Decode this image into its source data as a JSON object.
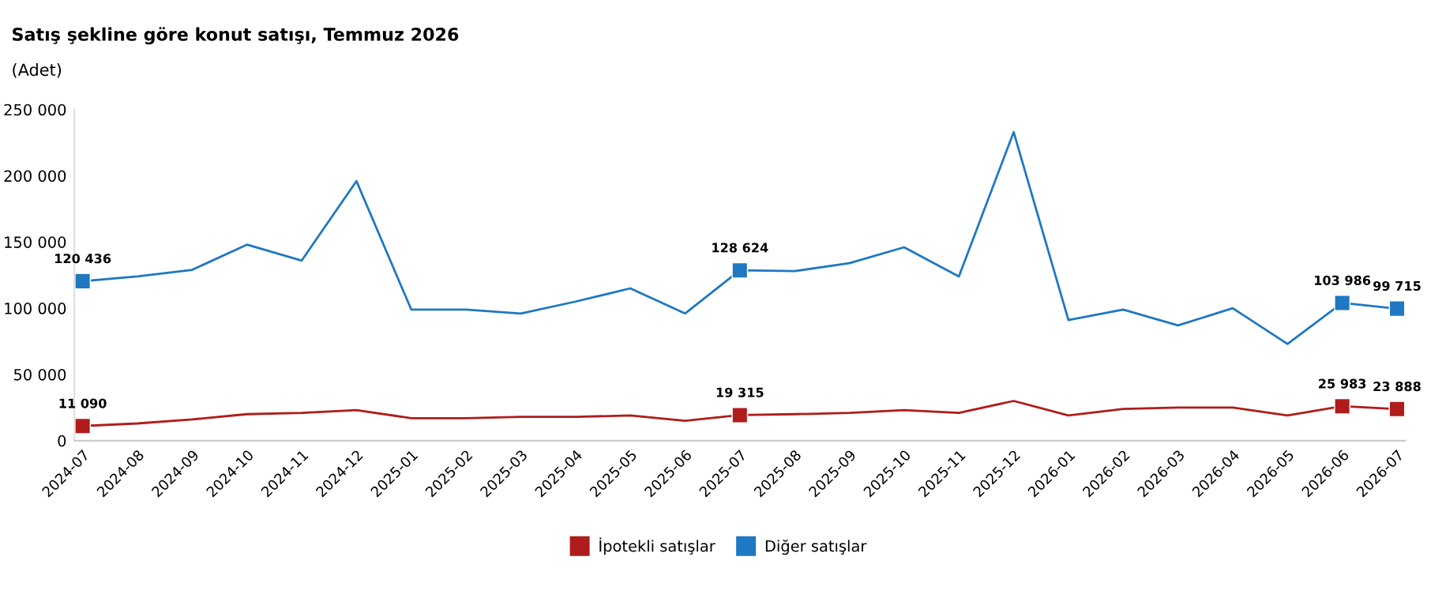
{
  "chart_data": {
    "type": "line",
    "title": "Satış şekline göre konut satışı, Temmuz 2026",
    "subtitle": "(Adet)",
    "categories": [
      "2024-07",
      "2024-08",
      "2024-09",
      "2024-10",
      "2024-11",
      "2024-12",
      "2025-01",
      "2025-02",
      "2025-03",
      "2025-04",
      "2025-05",
      "2025-06",
      "2025-07",
      "2025-08",
      "2025-09",
      "2025-10",
      "2025-11",
      "2025-12",
      "2026-01",
      "2026-02",
      "2026-03",
      "2026-04",
      "2026-05",
      "2026-06",
      "2026-07"
    ],
    "series": [
      {
        "name": "İpotekli satışlar",
        "color": "#b01c1c",
        "values": [
          11090,
          13000,
          16000,
          20000,
          21000,
          23000,
          17000,
          17000,
          18000,
          18000,
          19000,
          15000,
          19315,
          20000,
          21000,
          23000,
          21000,
          30000,
          19000,
          24000,
          25000,
          25000,
          19000,
          25983,
          23888
        ],
        "value_labels": [
          "11 090",
          null,
          null,
          null,
          null,
          null,
          null,
          null,
          null,
          null,
          null,
          null,
          "19 315",
          null,
          null,
          null,
          null,
          null,
          null,
          null,
          null,
          null,
          null,
          "25 983",
          "23 888"
        ]
      },
      {
        "name": "Diğer satışlar",
        "color": "#1f78c1",
        "values": [
          120436,
          124000,
          129000,
          148000,
          136000,
          196000,
          99000,
          99000,
          96000,
          105000,
          115000,
          96000,
          128624,
          128000,
          134000,
          146000,
          124000,
          233000,
          91000,
          99000,
          87000,
          100000,
          73000,
          103986,
          99715
        ],
        "value_labels": [
          "120 436",
          null,
          null,
          null,
          null,
          null,
          null,
          null,
          null,
          null,
          null,
          null,
          "128 624",
          null,
          null,
          null,
          null,
          null,
          null,
          null,
          null,
          null,
          null,
          "103 986",
          "99 715"
        ]
      }
    ],
    "ylim": [
      0,
      250000
    ],
    "yticks": [
      {
        "value": 0,
        "label": "0"
      },
      {
        "value": 50000,
        "label": "50 000"
      },
      {
        "value": 100000,
        "label": "100 000"
      },
      {
        "value": 150000,
        "label": "150 000"
      },
      {
        "value": 200000,
        "label": "200 000"
      },
      {
        "value": 250000,
        "label": "250 000"
      }
    ],
    "grid": false,
    "legend": "bottom",
    "line_style": "solid"
  }
}
